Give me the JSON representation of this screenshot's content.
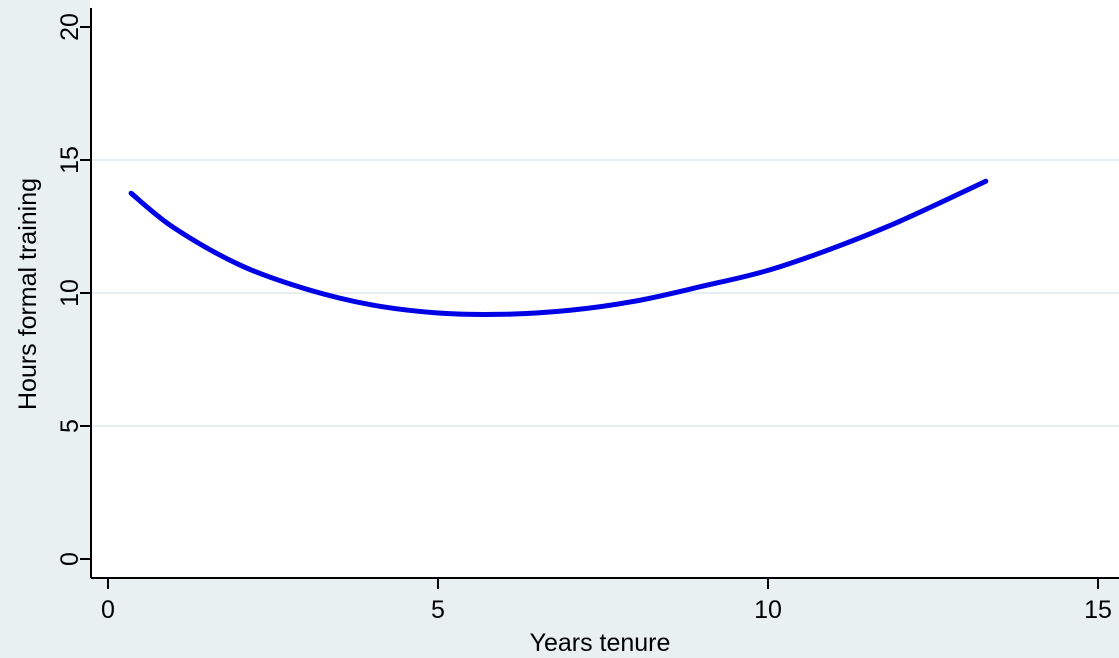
{
  "chart_data": {
    "type": "line",
    "title": "",
    "xlabel": "Years tenure",
    "ylabel": "Hours formal training",
    "xlim": [
      0,
      15
    ],
    "ylim": [
      0,
      20
    ],
    "xticks": [
      0,
      5,
      10,
      15
    ],
    "yticks": [
      0,
      5,
      10,
      15,
      20
    ],
    "grid": true,
    "series": [
      {
        "color": "#0000e6",
        "x": [
          0.35,
          1,
          2,
          3,
          4,
          5,
          6,
          7,
          8,
          9,
          10,
          11,
          12,
          13.3
        ],
        "y": [
          13.75,
          12.45,
          11.05,
          10.15,
          9.55,
          9.25,
          9.2,
          9.35,
          9.7,
          10.25,
          10.85,
          11.7,
          12.7,
          14.2
        ]
      }
    ]
  }
}
